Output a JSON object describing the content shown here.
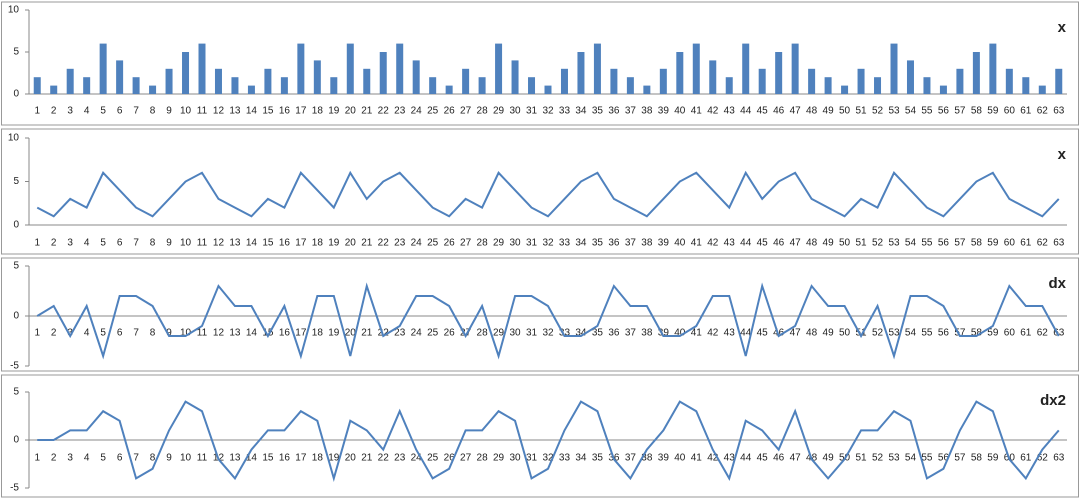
{
  "chart_data": [
    {
      "type": "bar",
      "title": "x",
      "color": "#4f81bd",
      "categories": [
        1,
        2,
        3,
        4,
        5,
        6,
        7,
        8,
        9,
        10,
        11,
        12,
        13,
        14,
        15,
        16,
        17,
        18,
        19,
        20,
        21,
        22,
        23,
        24,
        25,
        26,
        27,
        28,
        29,
        30,
        31,
        32,
        33,
        34,
        35,
        36,
        37,
        38,
        39,
        40,
        41,
        42,
        43,
        44,
        45,
        46,
        47,
        48,
        49,
        50,
        51,
        52,
        53,
        54,
        55,
        56,
        57,
        58,
        59,
        60,
        61,
        62,
        63
      ],
      "values": [
        2,
        1,
        3,
        2,
        6,
        4,
        2,
        1,
        3,
        5,
        6,
        3,
        2,
        1,
        3,
        2,
        6,
        4,
        2,
        6,
        3,
        5,
        6,
        4,
        2,
        1,
        3,
        2,
        6,
        4,
        2,
        1,
        3,
        5,
        6,
        3,
        2,
        1,
        3,
        5,
        6,
        4,
        2,
        6,
        3,
        5,
        6,
        3,
        2,
        1,
        3,
        2,
        6,
        4,
        2,
        1,
        3,
        5,
        6,
        3,
        2,
        1,
        3
      ],
      "ylim": [
        0,
        10
      ],
      "yticks": [
        0,
        5,
        10
      ]
    },
    {
      "type": "line",
      "title": "x",
      "color": "#4f81bd",
      "categories": [
        1,
        2,
        3,
        4,
        5,
        6,
        7,
        8,
        9,
        10,
        11,
        12,
        13,
        14,
        15,
        16,
        17,
        18,
        19,
        20,
        21,
        22,
        23,
        24,
        25,
        26,
        27,
        28,
        29,
        30,
        31,
        32,
        33,
        34,
        35,
        36,
        37,
        38,
        39,
        40,
        41,
        42,
        43,
        44,
        45,
        46,
        47,
        48,
        49,
        50,
        51,
        52,
        53,
        54,
        55,
        56,
        57,
        58,
        59,
        60,
        61,
        62,
        63
      ],
      "values": [
        2,
        1,
        3,
        2,
        6,
        4,
        2,
        1,
        3,
        5,
        6,
        3,
        2,
        1,
        3,
        2,
        6,
        4,
        2,
        6,
        3,
        5,
        6,
        4,
        2,
        1,
        3,
        2,
        6,
        4,
        2,
        1,
        3,
        5,
        6,
        3,
        2,
        1,
        3,
        5,
        6,
        4,
        2,
        6,
        3,
        5,
        6,
        3,
        2,
        1,
        3,
        2,
        6,
        4,
        2,
        1,
        3,
        5,
        6,
        3,
        2,
        1,
        3
      ],
      "ylim": [
        0,
        10
      ],
      "yticks": [
        0,
        5,
        10
      ]
    },
    {
      "type": "line",
      "title": "dx",
      "color": "#4f81bd",
      "categories": [
        1,
        2,
        3,
        4,
        5,
        6,
        7,
        8,
        9,
        10,
        11,
        12,
        13,
        14,
        15,
        16,
        17,
        18,
        19,
        20,
        21,
        22,
        23,
        24,
        25,
        26,
        27,
        28,
        29,
        30,
        31,
        32,
        33,
        34,
        35,
        36,
        37,
        38,
        39,
        40,
        41,
        42,
        43,
        44,
        45,
        46,
        47,
        48,
        49,
        50,
        51,
        52,
        53,
        54,
        55,
        56,
        57,
        58,
        59,
        60,
        61,
        62,
        63
      ],
      "values": [
        0,
        1,
        -2,
        1,
        -4,
        2,
        2,
        1,
        -2,
        -2,
        -1,
        3,
        1,
        1,
        -2,
        1,
        -4,
        2,
        2,
        -4,
        3,
        -2,
        -1,
        2,
        2,
        1,
        -2,
        1,
        -4,
        2,
        2,
        1,
        -2,
        -2,
        -1,
        3,
        1,
        1,
        -2,
        -2,
        -1,
        2,
        2,
        -4,
        3,
        -2,
        -1,
        3,
        1,
        1,
        -2,
        1,
        -4,
        2,
        2,
        1,
        -2,
        -2,
        -1,
        3,
        1,
        1,
        -2
      ],
      "ylim": [
        -5,
        5
      ],
      "yticks": [
        -5,
        0,
        5
      ]
    },
    {
      "type": "line",
      "title": "dx2",
      "color": "#4f81bd",
      "categories": [
        1,
        2,
        3,
        4,
        5,
        6,
        7,
        8,
        9,
        10,
        11,
        12,
        13,
        14,
        15,
        16,
        17,
        18,
        19,
        20,
        21,
        22,
        23,
        24,
        25,
        26,
        27,
        28,
        29,
        30,
        31,
        32,
        33,
        34,
        35,
        36,
        37,
        38,
        39,
        40,
        41,
        42,
        43,
        44,
        45,
        46,
        47,
        48,
        49,
        50,
        51,
        52,
        53,
        54,
        55,
        56,
        57,
        58,
        59,
        60,
        61,
        62,
        63
      ],
      "values": [
        0,
        0,
        1,
        1,
        3,
        2,
        -4,
        -3,
        1,
        4,
        3,
        -2,
        -4,
        -1,
        1,
        1,
        3,
        2,
        -4,
        2,
        1,
        -1,
        3,
        -1,
        -4,
        -3,
        1,
        1,
        3,
        2,
        -4,
        -3,
        1,
        4,
        3,
        -2,
        -4,
        -1,
        1,
        4,
        3,
        -1,
        -4,
        2,
        1,
        -1,
        3,
        -2,
        -4,
        -2,
        1,
        1,
        3,
        2,
        -4,
        -3,
        1,
        4,
        3,
        -2,
        -4,
        -1,
        1
      ],
      "ylim": [
        -5,
        5
      ],
      "yticks": [
        -5,
        0,
        5
      ]
    }
  ]
}
